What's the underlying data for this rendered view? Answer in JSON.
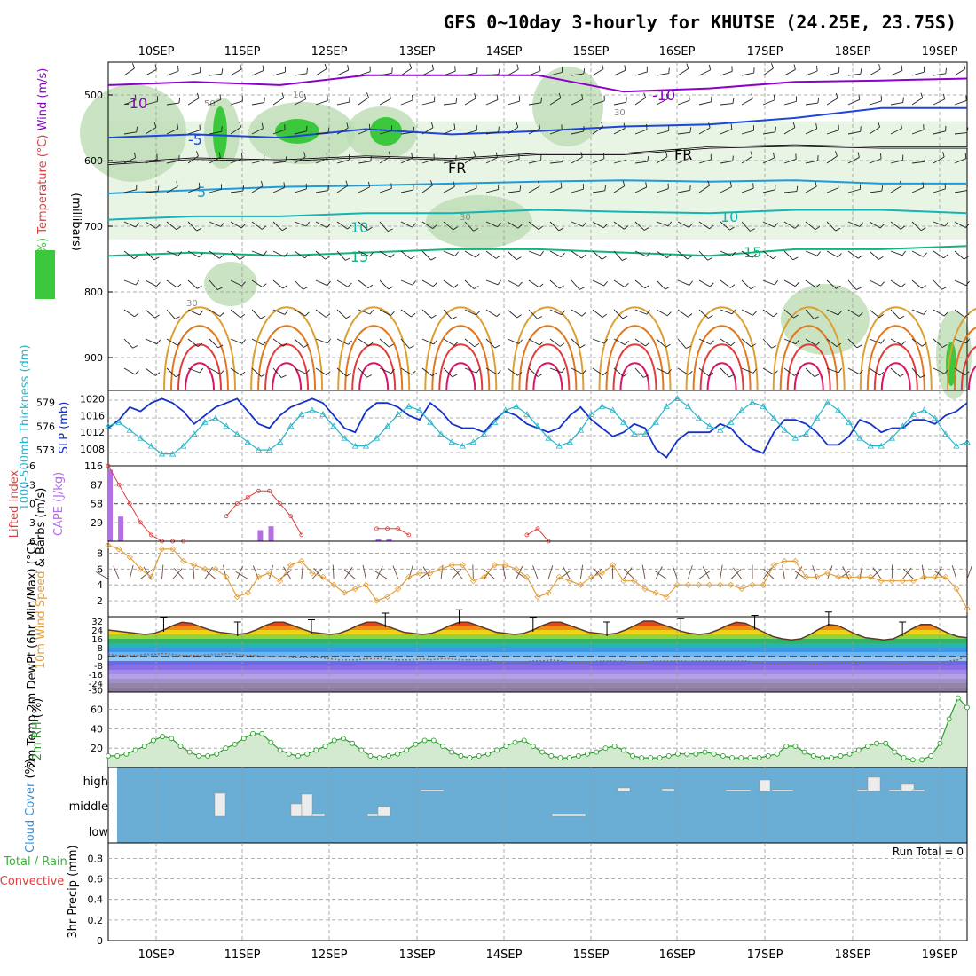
{
  "title": "GFS 0~10day 3-hourly for KHUTSE (24.25E, 23.75S)",
  "colors": {
    "temp_neg10": "#8c00c8",
    "temp_neg5": "#1e46dc",
    "temp_fr": "#000000",
    "temp_5": "#1e9bdc",
    "temp_10": "#14b4b4",
    "temp_15": "#14b478",
    "temp_20": "#dca032",
    "temp_25": "#e07820",
    "temp_30": "#e03c3c",
    "temp_35": "#dc1464",
    "rh_band": "#3cc83c",
    "slp": "#1432c8",
    "thickness": "#28b4c8",
    "lifted": "#e03c3c",
    "cape": "#b46ee6",
    "wind10": "#e0a040",
    "dewpt": "#8a6a5a",
    "rh2m": "#2aa02a",
    "cloud_bg": "#6aaed6",
    "cloud_bar": "#ececec"
  },
  "chart_data": [
    {
      "type": "heatmap",
      "panel": "upper-air",
      "x_dates": [
        "10SEP",
        "11SEP",
        "12SEP",
        "13SEP",
        "14SEP",
        "15SEP",
        "16SEP",
        "17SEP",
        "18SEP",
        "19SEP"
      ],
      "y_label_parts": [
        "RH (%)",
        "Temperature (°C)",
        "Wind (m/s)"
      ],
      "y_units": "(millibars)",
      "y_ticks": [
        500,
        600,
        700,
        800,
        900
      ],
      "ylim": [
        950,
        450
      ],
      "contour_labels": [
        "-10",
        "-5",
        "FR",
        "5",
        "10",
        "15"
      ],
      "rh_labels": [
        "10",
        "30",
        "50"
      ],
      "temperature_isotherms": [
        {
          "label": "-10",
          "pressure": [
            485,
            480,
            485,
            470,
            470,
            470,
            495,
            490,
            480,
            478,
            475
          ]
        },
        {
          "label": "-5",
          "pressure": [
            565,
            560,
            565,
            552,
            560,
            555,
            548,
            545,
            535,
            520,
            520
          ]
        },
        {
          "label": "FR",
          "pressure": [
            605,
            597,
            600,
            594,
            598,
            590,
            590,
            580,
            577,
            580,
            580
          ]
        },
        {
          "label": "5",
          "pressure": [
            650,
            645,
            640,
            638,
            635,
            632,
            630,
            632,
            630,
            635,
            635
          ]
        },
        {
          "label": "10",
          "pressure": [
            690,
            685,
            685,
            680,
            680,
            675,
            678,
            680,
            675,
            675,
            680
          ]
        },
        {
          "label": "15",
          "pressure": [
            745,
            740,
            745,
            740,
            735,
            735,
            740,
            745,
            735,
            735,
            730
          ]
        }
      ]
    },
    {
      "type": "line",
      "panel": "slp-thickness",
      "left_axis_label": "1000-500mb Thickness (dm)",
      "left_ticks": [
        573,
        576,
        579
      ],
      "right_axis_label": "SLP (mb)",
      "right_ticks": [
        1008,
        1012,
        1016,
        1020
      ],
      "ylim_slp": [
        1004,
        1022
      ],
      "ylim_thick": [
        571,
        580.5
      ],
      "series": [
        {
          "name": "SLP (mb)",
          "values": [
            1013,
            1015,
            1018,
            1017,
            1019,
            1020,
            1019,
            1017,
            1014,
            1016,
            1018,
            1019,
            1020,
            1017,
            1014,
            1013,
            1016,
            1018,
            1019,
            1020,
            1019,
            1016,
            1013,
            1012,
            1017,
            1019,
            1019,
            1018,
            1016,
            1015,
            1019,
            1017,
            1014,
            1013,
            1013,
            1012,
            1015,
            1017,
            1016,
            1014,
            1013,
            1012,
            1013,
            1016,
            1018,
            1015,
            1013,
            1011,
            1012,
            1014,
            1013,
            1008,
            1006,
            1010,
            1012,
            1012,
            1012,
            1014,
            1013,
            1010,
            1008,
            1007,
            1012,
            1015,
            1015,
            1014,
            1012,
            1009,
            1009,
            1011,
            1015,
            1014,
            1012,
            1013,
            1013,
            1015,
            1015,
            1014,
            1016,
            1017,
            1019
          ]
        },
        {
          "name": "1000-500mb Thickness (dm)",
          "values": [
            576,
            576.5,
            575.5,
            574.5,
            573.5,
            572.5,
            572.5,
            573.5,
            575,
            576.5,
            577,
            576,
            575,
            574,
            573,
            573,
            574,
            576,
            577.5,
            578,
            577.5,
            576,
            574.5,
            573.5,
            573.5,
            574.5,
            576,
            577.5,
            578.5,
            578,
            576.5,
            575,
            574,
            573.5,
            574,
            575,
            576.5,
            578,
            578.5,
            577.5,
            576,
            574.5,
            573.5,
            574,
            575.5,
            577.5,
            578.5,
            578,
            576.5,
            575,
            575,
            576.5,
            578.5,
            579.5,
            578.5,
            577,
            576,
            575.5,
            576.5,
            578,
            579,
            578.5,
            577,
            575.5,
            574.5,
            575,
            577,
            579,
            578,
            576.5,
            574.5,
            573.5,
            573.5,
            574.5,
            576,
            577.5,
            578,
            577,
            575,
            573.5,
            574
          ]
        }
      ]
    },
    {
      "type": "bar",
      "panel": "cape-lifted",
      "left_axis_label": "Lifted Index",
      "left_ticks": [
        "-6",
        "-3",
        "0",
        "3",
        "6"
      ],
      "right_axis_label": "CAPE (J/kg)",
      "right_ticks": [
        29,
        58,
        87,
        116
      ],
      "ylim_cape": [
        0,
        116
      ],
      "ylim_li": [
        6,
        -6
      ],
      "series": [
        {
          "name": "Lifted Index",
          "values": [
            -6,
            -3,
            0,
            3,
            5,
            6,
            6,
            6,
            null,
            null,
            null,
            2,
            0,
            -1,
            -2,
            -2,
            0,
            2,
            5,
            null,
            null,
            null,
            null,
            null,
            null,
            4,
            4,
            4,
            5,
            null,
            null,
            null,
            null,
            null,
            null,
            null,
            null,
            null,
            null,
            5,
            4,
            6,
            null,
            null,
            null,
            null,
            null,
            null,
            null,
            null,
            null,
            null,
            null,
            null,
            null,
            null,
            null,
            null,
            null,
            null,
            null,
            null,
            null,
            null,
            null,
            null,
            null,
            null,
            null,
            null,
            null,
            null,
            null,
            null,
            null,
            null,
            null,
            null,
            null,
            null,
            null
          ]
        },
        {
          "name": "CAPE (J/kg)",
          "values": [
            110,
            38,
            0,
            0,
            0,
            0,
            0,
            0,
            0,
            0,
            0,
            0,
            0,
            0,
            17,
            23,
            0,
            0,
            0,
            0,
            0,
            0,
            0,
            0,
            0,
            3,
            3,
            0,
            0,
            0,
            0,
            0,
            0,
            0,
            0,
            0,
            0,
            0,
            0,
            0,
            0,
            0,
            0,
            0,
            0,
            0,
            0,
            0,
            0,
            0,
            0,
            0,
            0,
            0,
            0,
            0,
            0,
            0,
            0,
            0,
            0,
            0,
            0,
            0,
            0,
            0,
            0,
            0,
            0,
            0,
            0,
            0,
            0,
            0,
            0,
            0,
            0,
            0,
            0,
            0,
            0
          ]
        }
      ]
    },
    {
      "type": "line",
      "panel": "wind10m",
      "y_label_parts": [
        "10m Wind",
        "Speed",
        "& Barbs",
        "(m/s)"
      ],
      "y_ticks": [
        2,
        4,
        6,
        8
      ],
      "ylim": [
        0,
        9.5
      ],
      "series": [
        {
          "name": "10m Wind Speed",
          "values": [
            9,
            8.5,
            7.5,
            6,
            5,
            8.5,
            8.5,
            7,
            6.5,
            6,
            6,
            5,
            2.5,
            3,
            5,
            5.5,
            4.5,
            6.5,
            7,
            5.5,
            5,
            4,
            3,
            3.5,
            4,
            2,
            2.5,
            3.5,
            5,
            5.5,
            5.5,
            6,
            6.5,
            6.5,
            4.5,
            5,
            6.5,
            6.5,
            6,
            5,
            2.5,
            3,
            5,
            4.5,
            4,
            5,
            5.5,
            6.5,
            4.5,
            4.5,
            3.5,
            3,
            2.5,
            4,
            4,
            4,
            4,
            4,
            4,
            3.5,
            4,
            4,
            6.5,
            7,
            7,
            5,
            5,
            5.5,
            5,
            5,
            5,
            5,
            4.5,
            4.5,
            4.5,
            4.5,
            5,
            5,
            5,
            3.5,
            1
          ]
        }
      ]
    },
    {
      "type": "area",
      "panel": "temp2m",
      "y_label_parts": [
        "2m Temp",
        "2m DewPt",
        "(6hr Min/Max)",
        "(°C)"
      ],
      "y_ticks": [
        "32",
        "24",
        "16",
        "8",
        "0",
        "-8",
        "-16",
        "-24",
        "-30"
      ],
      "ylim": [
        -32,
        36
      ],
      "series": [
        {
          "name": "2m Temp",
          "values": [
            24,
            23,
            22,
            21,
            20,
            21,
            24,
            28,
            31,
            30,
            27,
            24,
            22,
            21,
            20,
            21,
            24,
            28,
            31,
            31,
            28,
            25,
            22,
            21,
            20,
            21,
            24,
            28,
            31,
            31,
            28,
            25,
            22,
            21,
            20,
            21,
            24,
            28,
            31,
            31,
            28,
            25,
            22,
            21,
            20,
            21,
            24,
            28,
            31,
            31,
            28,
            25,
            22,
            21,
            20,
            21,
            24,
            28,
            32,
            32,
            29,
            26,
            23,
            21,
            20,
            21,
            24,
            28,
            31,
            30,
            26,
            22,
            18,
            16,
            15,
            16,
            20,
            25,
            29,
            28,
            24,
            20,
            17,
            16,
            15,
            16,
            20,
            25,
            29,
            29,
            25,
            21,
            18,
            17
          ]
        },
        {
          "name": "2m DewPt",
          "values": [
            2,
            1,
            1,
            1,
            2,
            2,
            3,
            2,
            1,
            1,
            1,
            2,
            2,
            3,
            2,
            1,
            1,
            0,
            0,
            0,
            -1,
            -1,
            -1,
            -1,
            -2,
            -3,
            -3,
            -3,
            -2,
            -2,
            -2,
            -3,
            -3,
            -3,
            -2,
            -3,
            -2,
            -2,
            -3,
            -3,
            -3,
            -3,
            -5,
            -6,
            -6,
            -5,
            -4,
            -4,
            -3,
            -4,
            -5,
            -5,
            -5,
            -4,
            -4,
            -4,
            -4,
            -5,
            -5,
            -4,
            -4,
            -4,
            -4,
            -4,
            -4,
            -4,
            -4,
            -4,
            -4,
            -4,
            -5,
            -6,
            -7,
            -7,
            -6,
            -6,
            -7,
            -7,
            -6,
            -6,
            -5,
            -5,
            -6,
            -6,
            -6,
            -7,
            -7,
            -6,
            -6,
            -7,
            -6,
            -4,
            -3,
            1
          ]
        }
      ]
    },
    {
      "type": "area",
      "panel": "rh2m",
      "y_label_parts": [
        "2m RH",
        "(%)"
      ],
      "y_ticks": [
        20,
        40,
        60
      ],
      "ylim": [
        0,
        78
      ],
      "series": [
        {
          "name": "2m RH",
          "values": [
            12,
            12,
            14,
            18,
            22,
            28,
            32,
            30,
            22,
            16,
            12,
            12,
            14,
            20,
            24,
            30,
            35,
            35,
            26,
            18,
            14,
            12,
            14,
            18,
            22,
            28,
            30,
            25,
            18,
            12,
            10,
            12,
            14,
            18,
            24,
            28,
            28,
            22,
            16,
            12,
            10,
            12,
            14,
            18,
            22,
            26,
            28,
            22,
            16,
            12,
            10,
            10,
            12,
            14,
            16,
            20,
            22,
            18,
            12,
            10,
            10,
            10,
            12,
            14,
            14,
            14,
            16,
            14,
            12,
            10,
            10,
            10,
            10,
            12,
            14,
            22,
            22,
            16,
            12,
            10,
            10,
            12,
            14,
            18,
            22,
            25,
            25,
            16,
            10,
            8,
            8,
            12,
            25,
            50,
            72,
            62
          ]
        }
      ]
    },
    {
      "type": "bar",
      "panel": "cloud",
      "y_label_parts": [
        "Cloud Cover",
        "(%)"
      ],
      "levels": [
        "high",
        "middle",
        "low"
      ]
    },
    {
      "type": "bar",
      "panel": "precip",
      "y_label_parts": [
        "Total / Rain",
        "Convective",
        "3hr Precip (mm)"
      ],
      "y_ticks": [
        "0",
        "0.2",
        "0.4",
        "0.6",
        "0.8"
      ],
      "ylim": [
        0,
        0.95
      ],
      "run_total_label": "Run Total = 0",
      "series": []
    }
  ]
}
